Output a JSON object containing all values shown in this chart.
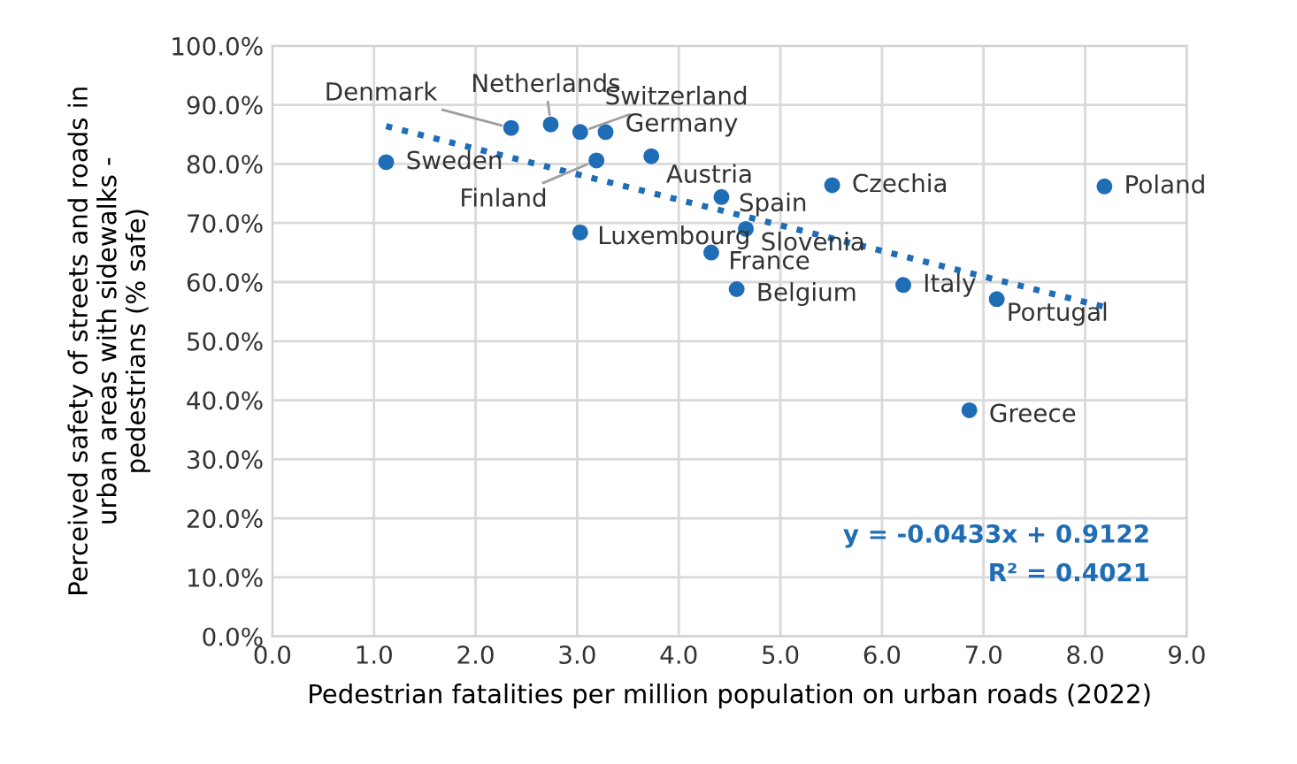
{
  "chart_data": {
    "type": "scatter",
    "xlabel": "Pedestrian fatalities per million population on urban roads (2022)",
    "ylabel": "Perceived safety of streets and roads in\nurban areas with sidewalks -\npedestrians (% safe)",
    "series": [
      {
        "color": "#1f6db5",
        "marker": "circle",
        "x": [
          1.12,
          2.35,
          2.74,
          3.03,
          3.28,
          3.19,
          3.73,
          3.03,
          4.42,
          4.66,
          4.32,
          4.57,
          5.51,
          6.21,
          7.13,
          6.86,
          8.19
        ],
        "values": [
          80.3,
          86.1,
          86.7,
          85.4,
          85.4,
          80.6,
          81.3,
          68.4,
          74.4,
          69.0,
          65.0,
          58.8,
          76.4,
          59.5,
          57.1,
          38.3,
          76.2
        ]
      },
      {
        "type": "line",
        "color": "#1f6db5",
        "marker": "none",
        "line_style": "dotted",
        "x": [
          1.12,
          8.19
        ],
        "values": [
          86.4,
          55.8
        ]
      }
    ],
    "annotations": [
      {
        "text": "Sweden",
        "x": 1.12,
        "y": 80.3
      },
      {
        "text": "Denmark",
        "x": 2.35,
        "y": 86.1
      },
      {
        "text": "Netherlands",
        "x": 2.74,
        "y": 86.7
      },
      {
        "text": "Switzerland",
        "x": 3.03,
        "y": 85.4
      },
      {
        "text": "Germany",
        "x": 3.28,
        "y": 85.4
      },
      {
        "text": "Finland",
        "x": 3.19,
        "y": 80.6
      },
      {
        "text": "Austria",
        "x": 3.73,
        "y": 81.3
      },
      {
        "text": "Luxembourg",
        "x": 3.03,
        "y": 68.4
      },
      {
        "text": "Spain",
        "x": 4.42,
        "y": 74.4
      },
      {
        "text": "Slovenia",
        "x": 4.66,
        "y": 69.0
      },
      {
        "text": "France",
        "x": 4.32,
        "y": 65.0
      },
      {
        "text": "Belgium",
        "x": 4.57,
        "y": 58.8
      },
      {
        "text": "Czechia",
        "x": 5.51,
        "y": 76.4
      },
      {
        "text": "Italy",
        "x": 6.21,
        "y": 59.5
      },
      {
        "text": "Portugal",
        "x": 7.13,
        "y": 57.1
      },
      {
        "text": "Greece",
        "x": 6.86,
        "y": 38.3
      },
      {
        "text": "Poland",
        "x": 8.19,
        "y": 76.2
      },
      "y = -0.0433x + 0.9122",
      "R² = 0.4021"
    ],
    "xlim": [
      0,
      9
    ],
    "xticks": [
      {
        "value": 0,
        "label": "0.0"
      },
      {
        "value": 1,
        "label": "1.0"
      },
      {
        "value": 2,
        "label": "2.0"
      },
      {
        "value": 3,
        "label": "3.0"
      },
      {
        "value": 4,
        "label": "4.0"
      },
      {
        "value": 5,
        "label": "5.0"
      },
      {
        "value": 6,
        "label": "6.0"
      },
      {
        "value": 7,
        "label": "7.0"
      },
      {
        "value": 8,
        "label": "8.0"
      },
      {
        "value": 9,
        "label": "9.0"
      }
    ],
    "ylim": [
      0,
      100
    ],
    "yticks": [
      {
        "value": 0,
        "label": "0.0%"
      },
      {
        "value": 10,
        "label": "10.0%"
      },
      {
        "value": 20,
        "label": "20.0%"
      },
      {
        "value": 30,
        "label": "30.0%"
      },
      {
        "value": 40,
        "label": "40.0%"
      },
      {
        "value": 50,
        "label": "50.0%"
      },
      {
        "value": 60,
        "label": "60.0%"
      },
      {
        "value": 70,
        "label": "70.0%"
      },
      {
        "value": 80,
        "label": "80.0%"
      },
      {
        "value": 90,
        "label": "90.0%"
      },
      {
        "value": 100,
        "label": "100.0%"
      }
    ],
    "grid": true
  }
}
